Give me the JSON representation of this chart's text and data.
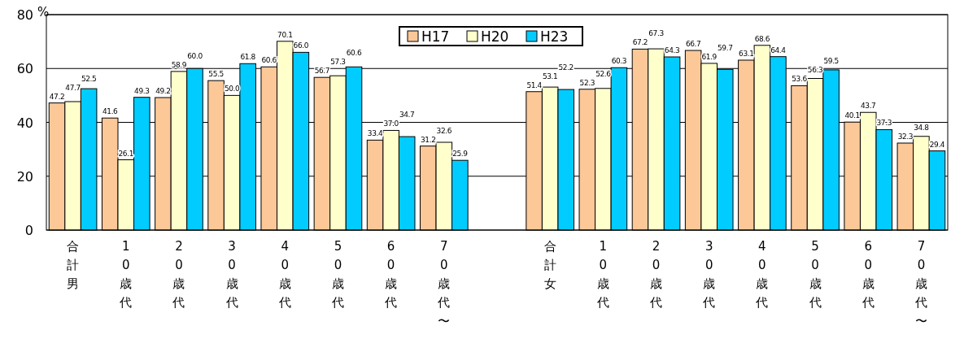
{
  "chart_data": {
    "type": "bar",
    "ylabel": "%",
    "categories": [
      "合計男",
      "10歳代",
      "20歳代",
      "30歳代",
      "40歳代",
      "50歳代",
      "60歳代",
      "70歳代〜",
      null,
      "合計女",
      "10歳代",
      "20歳代",
      "30歳代",
      "40歳代",
      "50歳代",
      "60歳代",
      "70歳代〜"
    ],
    "series": [
      {
        "name": "H17",
        "color": "#fcc898",
        "values": [
          47.2,
          41.6,
          49.2,
          55.5,
          60.6,
          56.7,
          33.4,
          31.2,
          null,
          51.4,
          52.3,
          67.2,
          66.7,
          63.1,
          53.6,
          40.1,
          32.3
        ]
      },
      {
        "name": "H20",
        "color": "#ffffcc",
        "values": [
          47.7,
          26.1,
          58.9,
          50.0,
          70.1,
          57.3,
          37.0,
          32.6,
          null,
          53.1,
          52.6,
          67.3,
          61.9,
          68.6,
          56.3,
          43.7,
          34.8
        ]
      },
      {
        "name": "H23",
        "color": "#00ccff",
        "values": [
          52.5,
          49.3,
          60.0,
          61.8,
          66.0,
          60.6,
          34.7,
          25.9,
          null,
          52.2,
          60.3,
          64.3,
          59.7,
          64.4,
          59.5,
          37.3,
          29.4
        ]
      }
    ],
    "ylim": [
      0,
      80
    ],
    "yticks": [
      0,
      20,
      40,
      60,
      80
    ],
    "grid": "y",
    "legend": "top",
    "value_labels": [
      [
        "47.2",
        "41.6",
        "49.2",
        "55.5",
        "60.6",
        "56.7",
        "33.4",
        "31.2",
        null,
        "51.4",
        "52.3",
        "67.2",
        "66.7",
        "63.1",
        "53.6",
        "40.1",
        "32.3"
      ],
      [
        "47.7",
        "26.1",
        "58.9",
        "50.0",
        "70.1",
        "57.3",
        "37.0",
        "32.6",
        null,
        "53.1",
        "52.6",
        "67.3",
        "61.9",
        "68.6",
        "56.3",
        "43.7",
        "34.8"
      ],
      [
        "52.5",
        "49.3",
        "60.0",
        "61.8",
        "66.0",
        "60.6",
        "34.7",
        "25.9",
        null,
        "52.2",
        "60.3",
        "64.3",
        "59.7",
        "64.4",
        "59.5",
        "37.3",
        "29.4"
      ]
    ]
  }
}
